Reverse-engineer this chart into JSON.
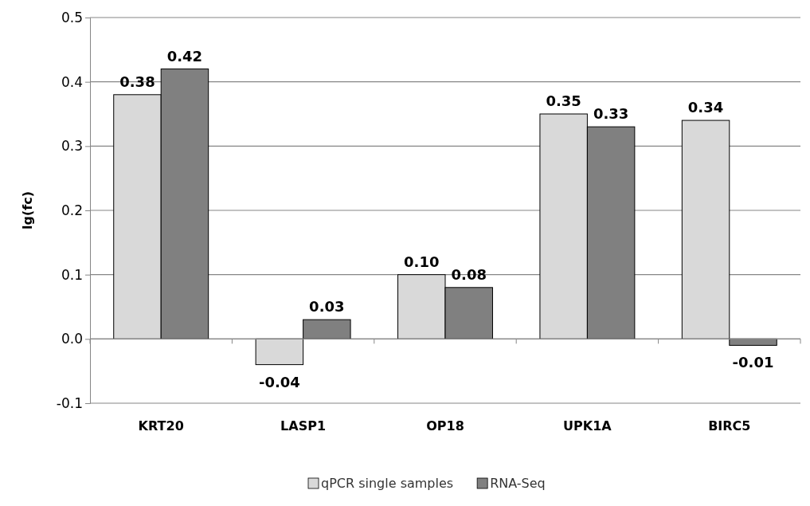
{
  "chart_data": {
    "type": "bar",
    "ylabel": "lg(fc)",
    "categories": [
      "KRT20",
      "LASP1",
      "OP18",
      "UPK1A",
      "BIRC5"
    ],
    "series": [
      {
        "name": "qPCR single samples",
        "color": "#d9d9d9",
        "values": [
          0.38,
          -0.04,
          0.1,
          0.35,
          0.34
        ],
        "value_labels": [
          "0.38",
          "-0.04",
          "0.10",
          "0.35",
          "0.34"
        ]
      },
      {
        "name": "RNA-Seq",
        "color": "#808080",
        "values": [
          0.42,
          0.03,
          0.08,
          0.33,
          -0.01
        ],
        "value_labels": [
          "0.42",
          "0.03",
          "0.08",
          "0.33",
          "-0.01"
        ]
      }
    ],
    "ylim": [
      -0.1,
      0.5
    ],
    "yticks": [
      {
        "value": -0.1,
        "label": "-0.1"
      },
      {
        "value": 0,
        "label": "0.0"
      },
      {
        "value": 0.1,
        "label": "0.1"
      },
      {
        "value": 0.2,
        "label": "0.2"
      },
      {
        "value": 0.3,
        "label": "0.3"
      },
      {
        "value": 0.4,
        "label": "0.4"
      },
      {
        "value": 0.5,
        "label": "0.5"
      }
    ],
    "grid": "y",
    "legend": "bottom"
  }
}
